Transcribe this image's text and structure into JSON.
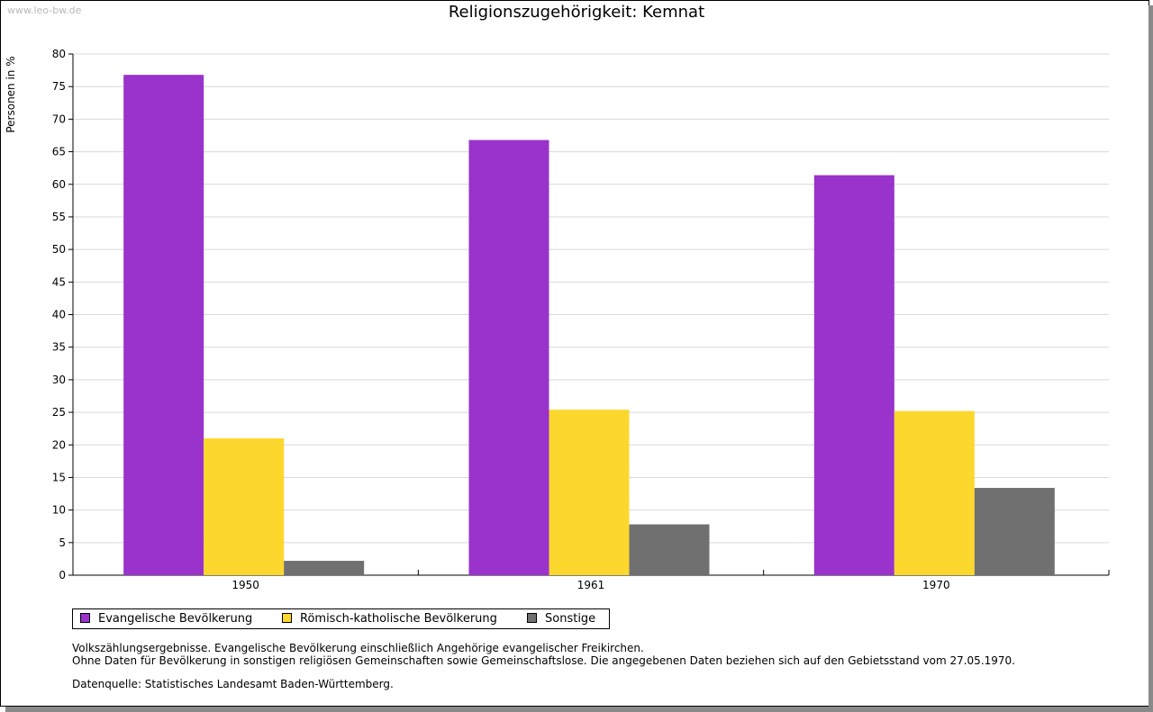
{
  "watermark": "www.leo-bw.de",
  "chart_data": {
    "type": "bar",
    "title": "Religionszugehörigkeit: Kemnat",
    "xlabel": "",
    "ylabel": "Personen in %",
    "ylim": [
      0,
      80
    ],
    "yticks": [
      "0",
      "5",
      "10",
      "15",
      "20",
      "25",
      "30",
      "35",
      "40",
      "45",
      "50",
      "55",
      "60",
      "65",
      "70",
      "75",
      "80"
    ],
    "categories": [
      "1950",
      "1961",
      "1970"
    ],
    "series": [
      {
        "name": "Evangelische Bevölkerung",
        "color": "#9933cc",
        "values": [
          76.8,
          66.8,
          61.4
        ]
      },
      {
        "name": "Römisch-katholische Bevölkerung",
        "color": "#fcd72e",
        "values": [
          21.0,
          25.4,
          25.2
        ]
      },
      {
        "name": "Sonstige",
        "color": "#707070",
        "values": [
          2.2,
          7.8,
          13.4
        ]
      }
    ],
    "grid": true,
    "legend_position": "bottom-left"
  },
  "legend": [
    {
      "label": "Evangelische Bevölkerung",
      "color": "#9933cc"
    },
    {
      "label": "Römisch-katholische Bevölkerung",
      "color": "#fcd72e"
    },
    {
      "label": "Sonstige",
      "color": "#707070"
    }
  ],
  "notes": {
    "line1": "Volkszählungsergebnisse. Evangelische Bevölkerung einschließlich Angehörige evangelischer Freikirchen.",
    "line2": "Ohne Daten für Bevölkerung in sonstigen religiösen Gemeinschaften sowie Gemeinschaftslose. Die angegebenen Daten beziehen sich auf den Gebietsstand vom 27.05.1970.",
    "source": "Datenquelle: Statistisches Landesamt Baden-Württemberg."
  }
}
